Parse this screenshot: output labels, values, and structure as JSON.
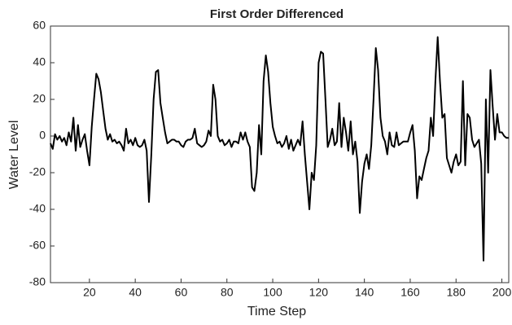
{
  "chart_data": {
    "type": "line",
    "title": "First Order Differenced",
    "xlabel": "Time Step",
    "ylabel": "Water Level",
    "x": [
      3,
      4,
      5,
      6,
      7,
      8,
      9,
      10,
      11,
      12,
      13,
      14,
      15,
      16,
      17,
      18,
      19,
      20,
      21,
      22,
      23,
      24,
      25,
      26,
      27,
      28,
      29,
      30,
      31,
      32,
      33,
      34,
      35,
      36,
      37,
      38,
      39,
      40,
      41,
      42,
      43,
      44,
      45,
      46,
      47,
      48,
      49,
      50,
      51,
      52,
      53,
      54,
      55,
      56,
      57,
      58,
      59,
      60,
      61,
      62,
      63,
      64,
      65,
      66,
      67,
      68,
      69,
      70,
      71,
      72,
      73,
      74,
      75,
      76,
      77,
      78,
      79,
      80,
      81,
      82,
      83,
      84,
      85,
      86,
      87,
      88,
      89,
      90,
      91,
      92,
      93,
      94,
      95,
      96,
      97,
      98,
      99,
      100,
      101,
      102,
      103,
      104,
      105,
      106,
      107,
      108,
      109,
      110,
      111,
      112,
      113,
      114,
      115,
      116,
      117,
      118,
      119,
      120,
      121,
      122,
      123,
      124,
      125,
      126,
      127,
      128,
      129,
      130,
      131,
      132,
      133,
      134,
      135,
      136,
      137,
      138,
      139,
      140,
      141,
      142,
      143,
      144,
      145,
      146,
      147,
      148,
      149,
      150,
      151,
      152,
      153,
      154,
      155,
      156,
      157,
      158,
      159,
      160,
      161,
      162,
      163,
      164,
      165,
      166,
      167,
      168,
      169,
      170,
      171,
      172,
      173,
      174,
      175,
      176,
      177,
      178,
      179,
      180,
      181,
      182,
      183,
      184,
      185,
      186,
      187,
      188,
      189,
      190,
      191,
      192,
      193,
      194,
      195,
      196,
      197,
      198,
      199,
      200,
      201,
      202,
      203
    ],
    "series": [
      {
        "color": "#000000",
        "values": [
          -4,
          -7,
          1,
          -2,
          0,
          -3,
          -1,
          -5,
          2,
          -3,
          10,
          -8,
          6,
          -6,
          -2,
          1,
          -8,
          -16,
          5,
          20,
          34,
          31,
          24,
          14,
          4,
          -2,
          1,
          -3,
          -2,
          -4,
          -3,
          -5,
          -8,
          4,
          -4,
          -2,
          -5,
          -1,
          -5,
          -6,
          -5,
          -2,
          -8,
          -36,
          -10,
          20,
          35,
          36,
          18,
          10,
          2,
          -4,
          -3,
          -2,
          -2,
          -3,
          -3,
          -5,
          -6,
          -3,
          -2,
          -2,
          -1,
          4,
          -4,
          -5,
          -6,
          -5,
          -3,
          3,
          0,
          28,
          20,
          0,
          -3,
          -2,
          -5,
          -4,
          -2,
          -6,
          -3,
          -3,
          -4,
          2,
          -2,
          2,
          -3,
          -6,
          -28,
          -30,
          -20,
          6,
          -10,
          30,
          44,
          35,
          18,
          5,
          0,
          -4,
          -3,
          -6,
          -4,
          0,
          -7,
          -2,
          -8,
          -5,
          -2,
          -5,
          8,
          -10,
          -25,
          -40,
          -20,
          -24,
          -5,
          40,
          46,
          45,
          20,
          -6,
          -2,
          4,
          -5,
          -3,
          18,
          -6,
          10,
          2,
          -8,
          8,
          -10,
          -3,
          -14,
          -42,
          -25,
          -15,
          -10,
          -18,
          -5,
          20,
          48,
          36,
          10,
          0,
          -3,
          -10,
          2,
          -5,
          -6,
          2,
          -5,
          -4,
          -3,
          -3,
          -3,
          2,
          6,
          -8,
          -34,
          -22,
          -24,
          -18,
          -12,
          -8,
          10,
          0,
          30,
          54,
          30,
          10,
          12,
          -12,
          -16,
          -20,
          -14,
          -10,
          -16,
          -14,
          30,
          -16,
          12,
          10,
          -2,
          -6,
          -4,
          -2,
          -15,
          -68,
          20,
          -20,
          36,
          16,
          -2,
          12,
          2,
          2,
          0,
          -1,
          -1
        ]
      }
    ],
    "xlim": [
      3,
      203
    ],
    "ylim": [
      -80,
      60
    ],
    "xticks": [
      20,
      40,
      60,
      80,
      100,
      120,
      140,
      160,
      180,
      200
    ],
    "yticks": [
      -80,
      -60,
      -40,
      -20,
      0,
      20,
      40,
      60
    ]
  }
}
